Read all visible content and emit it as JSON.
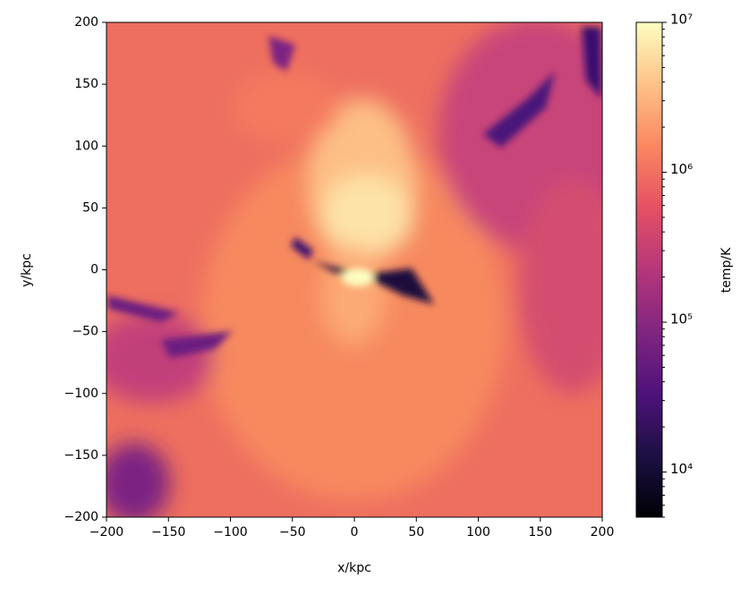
{
  "chart_data": {
    "type": "heatmap",
    "xlabel": "x/kpc",
    "ylabel": "y/kpc",
    "colorbar_label": "temp/K",
    "colormap": "magma",
    "clim": [
      5000,
      10000000
    ],
    "color_scale": "log",
    "xlim": [
      -200,
      200
    ],
    "ylim": [
      -200,
      200
    ],
    "xticks": [
      {
        "value": -200,
        "label": "−200"
      },
      {
        "value": -150,
        "label": "−150"
      },
      {
        "value": -100,
        "label": "−100"
      },
      {
        "value": -50,
        "label": "−50"
      },
      0,
      50,
      100,
      150,
      200
    ],
    "yticks": [
      {
        "value": -200,
        "label": "−200"
      },
      {
        "value": -150,
        "label": "−150"
      },
      {
        "value": -100,
        "label": "−100"
      },
      {
        "value": -50,
        "label": "−50"
      },
      0,
      50,
      100,
      150,
      200
    ],
    "cticks": [
      {
        "value": 10000,
        "label": "10⁴"
      },
      {
        "value": 100000,
        "label": "10⁵"
      },
      {
        "value": 1000000,
        "label": "10⁶"
      },
      {
        "value": 10000000,
        "label": "10⁷"
      }
    ]
  }
}
